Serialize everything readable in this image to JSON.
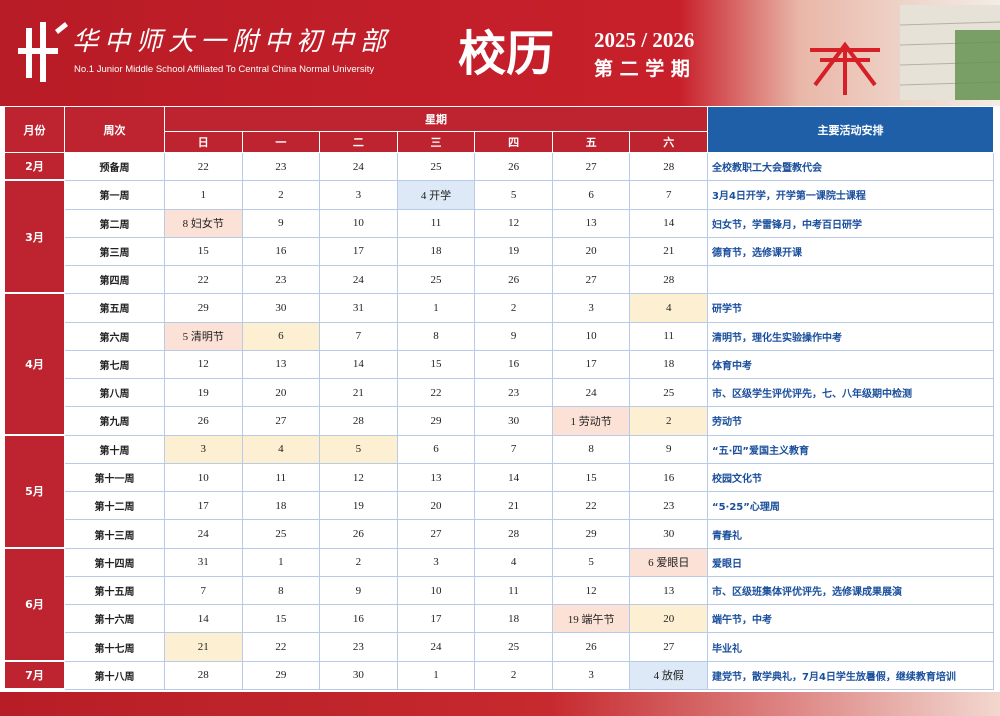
{
  "header": {
    "school_name": "华中师大一附中初中部",
    "school_english": "No.1 Junior Middle School Affiliated To Central China Normal University",
    "title": "校历",
    "year": "2025 / 2026",
    "term": "第 二 学 期"
  },
  "table": {
    "month_header": "月份",
    "week_header": "周次",
    "weekday_header": "星期",
    "days": [
      "日",
      "一",
      "二",
      "三",
      "四",
      "五",
      "六"
    ],
    "activity_header": "主要活动安排",
    "months": [
      {
        "label": "2月",
        "rows": [
          {
            "week": "预备周",
            "days": [
              22,
              23,
              24,
              25,
              26,
              27,
              28
            ],
            "activity": "全校教职工大会暨教代会"
          }
        ]
      },
      {
        "label": "3月",
        "rows": [
          {
            "week": "第一周",
            "days": [
              1,
              2,
              3,
              {
                "text": "4 开学",
                "fill": "#dde9f7"
              },
              5,
              6,
              7
            ],
            "activity": "3月4日开学，开学第一课院士课程"
          },
          {
            "week": "第二周",
            "days": [
              {
                "text": "8 妇女节",
                "fill": "#fbe1d6"
              },
              9,
              10,
              11,
              12,
              13,
              14
            ],
            "activity": "妇女节，学雷锋月，中考百日研学"
          },
          {
            "week": "第三周",
            "days": [
              15,
              16,
              17,
              18,
              19,
              20,
              21
            ],
            "activity": "德育节，选修课开课"
          },
          {
            "week": "第四周",
            "days": [
              22,
              23,
              24,
              25,
              26,
              27,
              28
            ]
          }
        ]
      },
      {
        "label": "4月",
        "rows": [
          {
            "week": "第五周",
            "days": [
              29,
              30,
              31,
              1,
              2,
              3,
              {
                "text": "4",
                "fill": "#fdf0d2"
              }
            ],
            "activity": "研学节"
          },
          {
            "week": "第六周",
            "days": [
              {
                "text": "5 清明节",
                "fill": "#fbe1d6"
              },
              {
                "text": "6",
                "fill": "#fdf0d2"
              },
              7,
              8,
              9,
              10,
              11
            ],
            "activity": "清明节，理化生实验操作中考"
          },
          {
            "week": "第七周",
            "days": [
              12,
              13,
              14,
              15,
              16,
              17,
              18
            ],
            "activity": "体育中考"
          },
          {
            "week": "第八周",
            "days": [
              19,
              20,
              21,
              22,
              23,
              24,
              25
            ],
            "activity": "市、区级学生评优评先，七、八年级期中检测"
          },
          {
            "week": "第九周",
            "days": [
              26,
              27,
              28,
              29,
              30,
              {
                "text": "1 劳动节",
                "fill": "#fbe1d6"
              },
              {
                "text": "2",
                "fill": "#fdf0d2"
              }
            ],
            "activity": "劳动节"
          }
        ]
      },
      {
        "label": "5月",
        "rows": [
          {
            "week": "第十周",
            "days": [
              {
                "text": "3",
                "fill": "#fdf0d2"
              },
              {
                "text": "4",
                "fill": "#fdf0d2"
              },
              {
                "text": "5",
                "fill": "#fdf0d2"
              },
              6,
              7,
              8,
              9
            ],
            "activity": "“五·四”爱国主义教育"
          },
          {
            "week": "第十一周",
            "days": [
              10,
              11,
              12,
              13,
              14,
              15,
              16
            ],
            "activity": "校园文化节"
          },
          {
            "week": "第十二周",
            "days": [
              17,
              18,
              19,
              20,
              21,
              22,
              23
            ],
            "activity": "“5·25”心理周"
          },
          {
            "week": "第十三周",
            "days": [
              24,
              25,
              26,
              27,
              28,
              29,
              30
            ],
            "activity": "青春礼"
          }
        ]
      },
      {
        "label": "6月",
        "rows": [
          {
            "week": "第十四周",
            "days": [
              31,
              1,
              2,
              3,
              4,
              5,
              {
                "text": "6 爱眼日",
                "fill": "#fbe1d6"
              }
            ],
            "activity": "爱眼日"
          },
          {
            "week": "第十五周",
            "days": [
              7,
              8,
              9,
              10,
              11,
              12,
              13
            ],
            "activity": "市、区级班集体评优评先，选修课成果展演"
          },
          {
            "week": "第十六周",
            "days": [
              14,
              15,
              16,
              17,
              18,
              {
                "text": "19 端午节",
                "fill": "#fbe1d6"
              },
              {
                "text": "20",
                "fill": "#fdf0d2"
              }
            ],
            "activity": "端午节，中考"
          },
          {
            "week": "第十七周",
            "days": [
              {
                "text": "21",
                "fill": "#fdf0d2"
              },
              22,
              23,
              24,
              25,
              26,
              27
            ],
            "activity": "毕业礼"
          }
        ]
      },
      {
        "label": "7月",
        "rows": [
          {
            "week": "第十八周",
            "days": [
              28,
              29,
              30,
              1,
              2,
              3,
              {
                "text": "4 放假",
                "fill": "#dde9f7"
              }
            ],
            "activity": "建党节，散学典礼，7月4日学生放暑假，继续教育培训"
          }
        ]
      }
    ]
  }
}
